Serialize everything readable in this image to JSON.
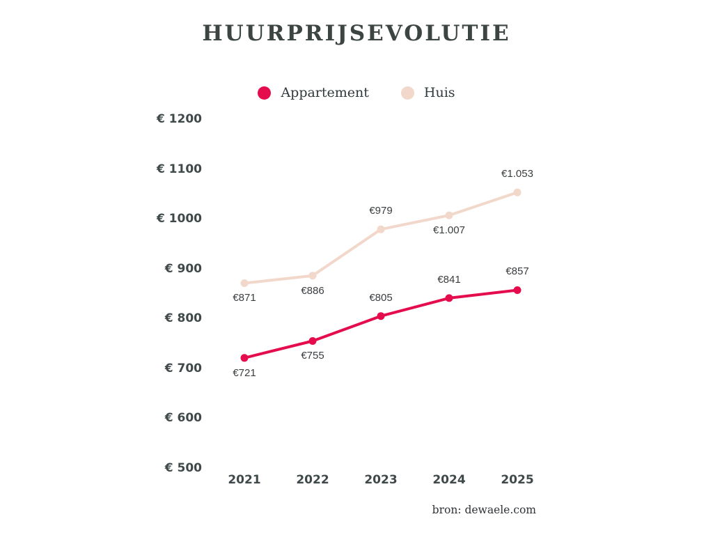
{
  "title": "HUURPRIJSEVOLUTIE",
  "source": "bron: dewaele.com",
  "chart_data": {
    "type": "line",
    "title": "HUURPRIJSEVOLUTIE",
    "categories": [
      "2021",
      "2022",
      "2023",
      "2024",
      "2025"
    ],
    "series": [
      {
        "name": "Appartement",
        "color": "#e40c4c",
        "values": [
          721,
          755,
          805,
          841,
          857
        ],
        "point_labels": [
          "€721",
          "€755",
          "€805",
          "€841",
          "€857"
        ],
        "label_positions": [
          "below",
          "below",
          "above",
          "above",
          "above"
        ]
      },
      {
        "name": "Huis",
        "color": "#f2d8cb",
        "values": [
          871,
          886,
          979,
          1007,
          1053
        ],
        "point_labels": [
          "€871",
          "€886",
          "€979",
          "€1.007",
          "€1.053"
        ],
        "label_positions": [
          "below",
          "below",
          "above",
          "below",
          "above"
        ]
      }
    ],
    "y_ticks": [
      {
        "label": "€ 1200",
        "value": 1200
      },
      {
        "label": "€ 1100",
        "value": 1100
      },
      {
        "label": "€ 1000",
        "value": 1000
      },
      {
        "label": "€ 900",
        "value": 900
      },
      {
        "label": "€ 800",
        "value": 800
      },
      {
        "label": "€ 700",
        "value": 700
      },
      {
        "label": "€ 600",
        "value": 600
      },
      {
        "label": "€ 500",
        "value": 500
      }
    ],
    "ylim": [
      500,
      1200
    ],
    "grid": false,
    "legend_position": "top"
  }
}
